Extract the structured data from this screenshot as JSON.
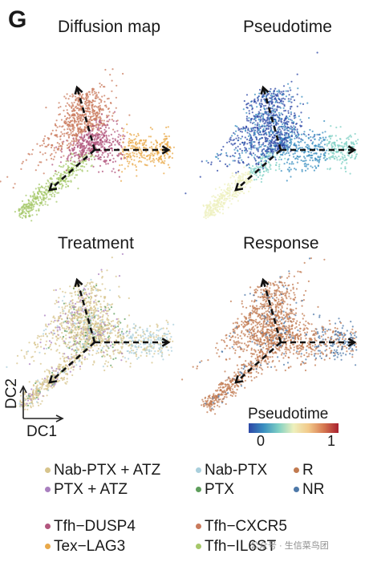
{
  "panel_letter": "G",
  "chart_data": [
    {
      "type": "scatter",
      "title": "Diffusion map",
      "coloring": "cell type",
      "colors": [
        "#b2567e",
        "#c97a5c",
        "#e9a94a",
        "#a6c86a"
      ],
      "arrows": "dashed black arrows from branch point along three trajectories"
    },
    {
      "type": "scatter",
      "title": "Pseudotime",
      "coloring": "pseudotime (continuous)",
      "colors": [
        "#2c47a6",
        "#3a8fc0",
        "#7fd0c4",
        "#eef0bd",
        "#a8202f"
      ]
    },
    {
      "type": "scatter",
      "title": "Treatment",
      "coloring": "treatment",
      "colors": [
        "#d7c48c",
        "#a9cfdc",
        "#a97fbf",
        "#5e9e5c"
      ]
    },
    {
      "type": "scatter",
      "title": "Response",
      "coloring": "response",
      "colors": [
        "#c17a50",
        "#4d78a8"
      ]
    }
  ],
  "axes": {
    "x_label": "DC1",
    "y_label": "DC2"
  },
  "colorbar": {
    "title": "Pseudotime",
    "min_label": "0",
    "max_label": "1",
    "colors": [
      "#2c47a6",
      "#3a8fc0",
      "#7fd0c4",
      "#eef0bd",
      "#f2c98a",
      "#d77a52",
      "#a8202f"
    ]
  },
  "legend": {
    "treatment": [
      {
        "label": "Nab-PTX + ATZ",
        "color": "#d7c48c"
      },
      {
        "label": "PTX + ATZ",
        "color": "#a97fbf"
      },
      {
        "label": "Nab-PTX",
        "color": "#a9cfdc"
      },
      {
        "label": "PTX",
        "color": "#5e9e5c"
      }
    ],
    "response": [
      {
        "label": "R",
        "color": "#c17a50"
      },
      {
        "label": "NR",
        "color": "#4d78a8"
      }
    ],
    "cell_types": [
      {
        "label": "Tfh−DUSP4",
        "color": "#b2567e"
      },
      {
        "label": "Tex−LAG3",
        "color": "#e9a94a"
      },
      {
        "label": "Tfh−CXCR5",
        "color": "#c97a5c"
      },
      {
        "label": "Tfh−IL6ST",
        "color": "#a6c86a"
      }
    ]
  },
  "watermark": "公众号 · 生信菜鸟团"
}
